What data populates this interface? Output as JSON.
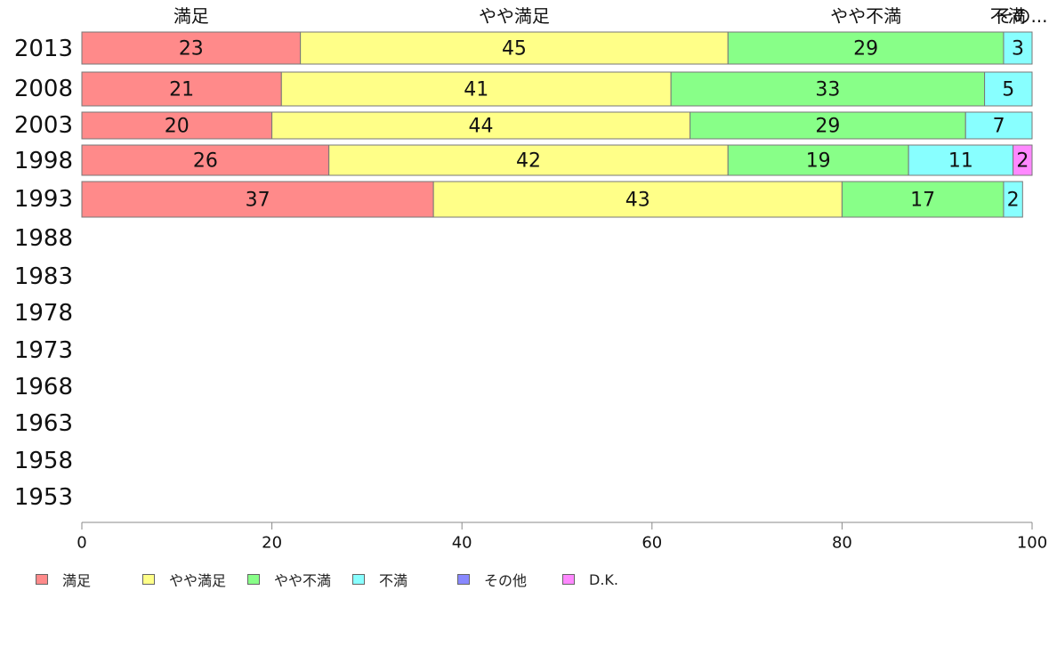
{
  "chart_data": {
    "type": "bar",
    "orientation": "horizontal",
    "stacked": true,
    "categories": [
      "2013",
      "2008",
      "2003",
      "1998",
      "1993",
      "1988",
      "1983",
      "1978",
      "1973",
      "1968",
      "1963",
      "1958",
      "1953"
    ],
    "series": [
      {
        "name": "満足",
        "color": "#ff8a8a",
        "values": [
          23,
          21,
          20,
          26,
          37,
          null,
          null,
          null,
          null,
          null,
          null,
          null,
          null
        ]
      },
      {
        "name": "やや満足",
        "color": "#ffff88",
        "values": [
          45,
          41,
          44,
          42,
          43,
          null,
          null,
          null,
          null,
          null,
          null,
          null,
          null
        ]
      },
      {
        "name": "やや不満",
        "color": "#88ff88",
        "values": [
          29,
          33,
          29,
          19,
          17,
          null,
          null,
          null,
          null,
          null,
          null,
          null,
          null
        ]
      },
      {
        "name": "不満",
        "color": "#88ffff",
        "values": [
          3,
          5,
          7,
          11,
          2,
          null,
          null,
          null,
          null,
          null,
          null,
          null,
          null
        ]
      },
      {
        "name": "その他",
        "color": "#8888ff",
        "values": [
          0,
          0,
          0,
          0,
          0,
          null,
          null,
          null,
          null,
          null,
          null,
          null,
          null
        ]
      },
      {
        "name": "D.K.",
        "color": "#ff88ff",
        "values": [
          0,
          0,
          0,
          2,
          0,
          null,
          null,
          null,
          null,
          null,
          null,
          null,
          null
        ]
      }
    ],
    "top_labels": [
      "満足",
      "やや満足",
      "やや不満",
      "不満",
      "その..."
    ],
    "xlim": [
      0,
      100
    ],
    "x_ticks": [
      0,
      20,
      40,
      60,
      80,
      100
    ],
    "grid": false,
    "legend_position": "bottom-left"
  }
}
